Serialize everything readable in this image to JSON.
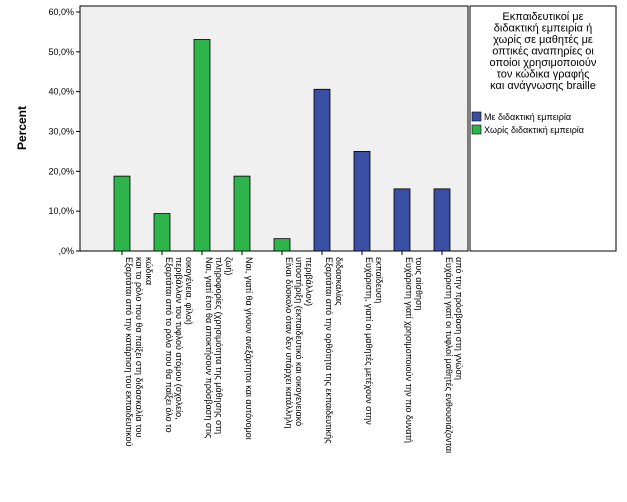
{
  "chart_data": {
    "type": "bar",
    "ylabel": "Percent",
    "xlabel": "",
    "ylim": [
      0,
      60
    ],
    "yticks": [
      "0%",
      "10,0%",
      "20,0%",
      "30,0%",
      "40,0%",
      "50,0%",
      "60,0%"
    ],
    "yticks_display": [
      ",0%",
      "10,0%",
      "20,0%",
      "30,0%",
      "40,0%",
      "50,0%",
      "60,0%"
    ],
    "grid": false,
    "legend": {
      "placement": "right",
      "title": [
        "Εκπαιδευτικοί με",
        "διδακτική εμπειρία ή",
        "χωρίς σε μαθητές με",
        "οπτικές αναπηρίες οι",
        "οποίοι χρησιμοποιούν",
        "τον κώδικα γραφής",
        "και ανάγνωσης braille"
      ],
      "entries": [
        "Με διδακτική εμπειρία",
        "Χωρίς διδακτική εμπειρία"
      ]
    },
    "colors": {
      "Με διδακτική εμπειρία": "#3a4ea3",
      "Χωρίς διδακτική εμπειρία": "#2db54b"
    },
    "categories": [
      {
        "lines": [
          "Εξαρτάται από την κατάρτιση του εκπαιδευτικού",
          "και το ρόλο που θα παίξει στη διδασκαλία του",
          "κώδικα"
        ],
        "series": "Χωρίς διδακτική εμπειρία",
        "value": 18.8
      },
      {
        "lines": [
          "Εξαρτάται από το ρόλο που θα παίξει όλο το",
          "περιβάλλον του τυφλού ατόμου (σχολείο,",
          "οικογένεια, φίλοι)"
        ],
        "series": "Χωρίς διδακτική εμπειρία",
        "value": 9.4
      },
      {
        "lines": [
          "Ναι, γιατί έτσι θα αποκτήσουν πρόσβαση στις",
          "πληροφορίες (χρησιμότητα της μάθησης στη",
          "ζωή)"
        ],
        "series": "Χωρίς διδακτική εμπειρία",
        "value": 53.1
      },
      {
        "lines": [
          "Ναι, γιατί θα γίνουν ανεξάρτητοι και αυτόνομοι"
        ],
        "series": "Χωρίς διδακτική εμπειρία",
        "value": 18.8
      },
      {
        "lines": [
          "Είναι δύσκολο όταν δεν υπάρχει κατάλληλη",
          "υποστήριξη (εκπαιδευτικό και οικογενειακό",
          "περιβάλλον)"
        ],
        "series": "Χωρίς διδακτική εμπειρία",
        "value": 3.1
      },
      {
        "lines": [
          "Εξαρτάται από την ορθότητα της εκπαιδευτικής",
          "διδασκαλίας"
        ],
        "series": "Με διδακτική εμπειρία",
        "value": 40.6
      },
      {
        "lines": [
          "Ευχάριστη, γιατί οι μαθητές μετέχουν στην",
          "εκπαίδευση"
        ],
        "series": "Με διδακτική εμπειρία",
        "value": 25.0
      },
      {
        "lines": [
          "Ευχάριστη γιατί χρησιμοποιούν την πιο δυνατή",
          "τους αίσθηση"
        ],
        "series": "Με διδακτική εμπειρία",
        "value": 15.6
      },
      {
        "lines": [
          "Ευχάριστη γιατί οι τυφλοί μαθητές ενθουσιάζονται",
          "από την πρόσβαση στη γνώση"
        ],
        "series": "Με διδακτική εμπειρία",
        "value": 15.6
      }
    ]
  }
}
